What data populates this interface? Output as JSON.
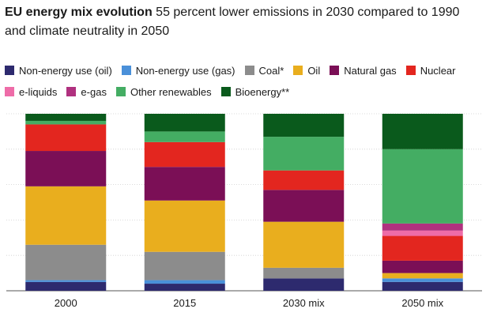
{
  "title_bold": "EU energy mix evolution",
  "title_rest": " 55 percent lower emissions in 2030 compared to 1990 and climate neutrality in 2050",
  "chart_data": {
    "type": "bar",
    "stacked": true,
    "normalized": true,
    "categories": [
      "2000",
      "2015",
      "2030 mix",
      "2050 mix"
    ],
    "ylim": [
      0,
      100
    ],
    "grid": true,
    "legend_position": "top",
    "series": [
      {
        "name": "Non-energy use (oil)",
        "color": "#2d2a6e",
        "values": [
          5,
          4,
          7,
          5
        ]
      },
      {
        "name": "Non-energy use (gas)",
        "color": "#4a90d9",
        "values": [
          1,
          2,
          0,
          2
        ]
      },
      {
        "name": "Coal*",
        "color": "#8c8c8c",
        "values": [
          20,
          16,
          6,
          0
        ]
      },
      {
        "name": "Oil",
        "color": "#e9ae1e",
        "values": [
          33,
          29,
          26,
          3
        ]
      },
      {
        "name": "Natural gas",
        "color": "#7b0f56",
        "values": [
          20,
          19,
          18,
          7
        ]
      },
      {
        "name": "Nuclear",
        "color": "#e3261f",
        "values": [
          15,
          14,
          11,
          14
        ]
      },
      {
        "name": "e-liquids",
        "color": "#ee6ca8",
        "values": [
          0,
          0,
          0,
          3
        ]
      },
      {
        "name": "e-gas",
        "color": "#b0317f",
        "values": [
          0,
          0,
          0,
          4
        ]
      },
      {
        "name": "Other renewables",
        "color": "#44ad63",
        "values": [
          2,
          6,
          19,
          42
        ]
      },
      {
        "name": "Bioenergy**",
        "color": "#0a5a1c",
        "values": [
          4,
          10,
          13,
          20
        ]
      }
    ]
  }
}
